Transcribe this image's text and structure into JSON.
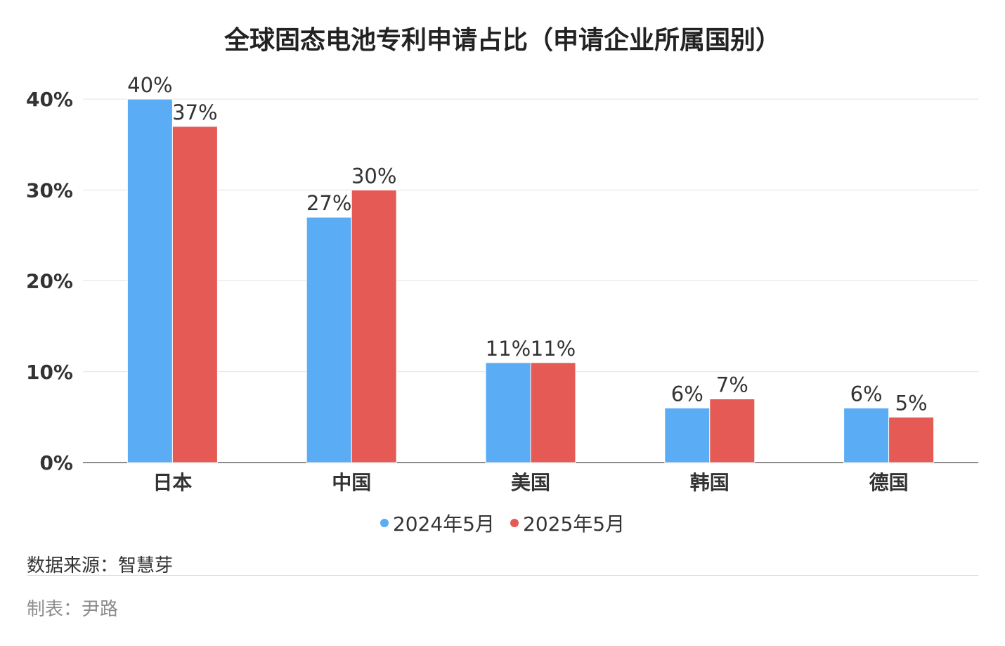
{
  "chart_data": {
    "type": "bar",
    "title": "全球固态电池专利申请占比（申请企业所属国别）",
    "categories": [
      "日本",
      "中国",
      "美国",
      "韩国",
      "德国"
    ],
    "series": [
      {
        "name": "2024年5月",
        "values": [
          40,
          27,
          11,
          6,
          6
        ],
        "color": "#5aacf5"
      },
      {
        "name": "2025年5月",
        "values": [
          37,
          30,
          11,
          7,
          5
        ],
        "color": "#e55a55"
      }
    ],
    "ylim": [
      0,
      40
    ],
    "yticks": [
      "0%",
      "10%",
      "20%",
      "30%",
      "40%"
    ],
    "value_suffix": "%",
    "grid": true,
    "legend": "bottom"
  },
  "footer": {
    "source": "数据来源：智慧芽",
    "author": "制表：尹路"
  }
}
